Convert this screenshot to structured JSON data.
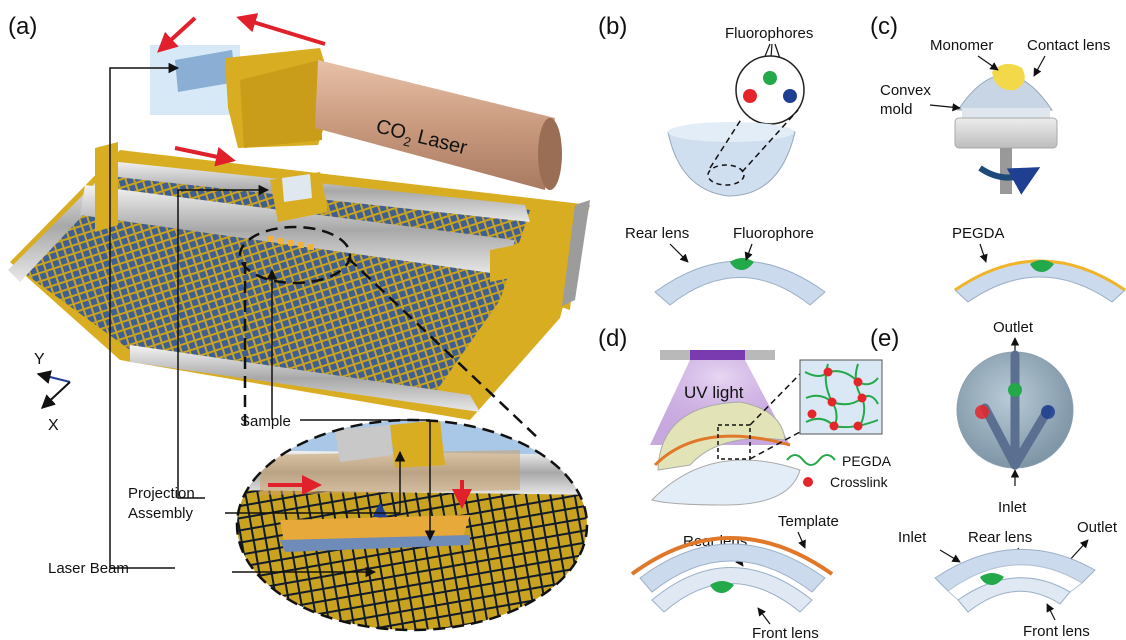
{
  "panels": {
    "a": "(a)",
    "b": "(b)",
    "c": "(c)",
    "d": "(d)",
    "e": "(e)"
  },
  "a": {
    "laser_prefix": "CO",
    "laser_sub": "2",
    "laser_suffix": " Laser",
    "axis_y": "Y",
    "axis_x": "X",
    "sample": "Sample",
    "projection_line1": "Projection",
    "projection_line2": "Assembly",
    "laser_beam": "Laser Beam"
  },
  "b": {
    "fluorophores": "Fluorophores",
    "rear_lens": "Rear lens",
    "fluorophore": "Fluorophore"
  },
  "c": {
    "monomer": "Monomer",
    "contact_lens": "Contact lens",
    "convex_line1": "Convex",
    "convex_line2": "mold",
    "pegda": "PEGDA"
  },
  "d": {
    "uv_light": "UV light",
    "pegda": "PEGDA",
    "crosslink": "Crosslink",
    "template": "Template",
    "rear_lens": "Rear lens",
    "front_lens": "Front lens"
  },
  "e": {
    "outlet_top": "Outlet",
    "inlet_mid": "Inlet",
    "inlet_left": "Inlet",
    "rear_lens": "Rear lens",
    "outlet_right": "Outlet",
    "front_lens": "Front lens"
  },
  "colors": {
    "gold": "#e2b62a",
    "mesh": "#4f6e9e",
    "lens": "#cbdaec",
    "red_arrow": "#e0202a",
    "fluor_red": "#e4262b",
    "fluor_green": "#23a84a",
    "fluor_blue": "#1f3f93",
    "pegda_yellow": "#f0b429",
    "template_orange": "#e0782a",
    "uv_purple": "#7a3bb0"
  },
  "icons": [
    "laser-tube-icon",
    "mesh-stage-icon",
    "uv-lamp-icon",
    "rotation-arrow-icon"
  ]
}
